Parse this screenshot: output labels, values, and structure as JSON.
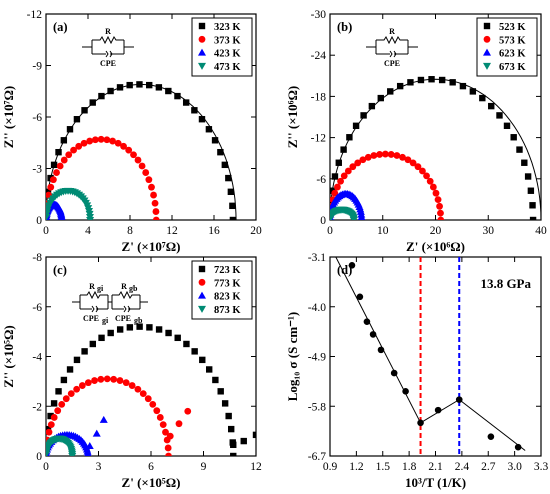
{
  "chart_data": [
    {
      "panel": "(a)",
      "type": "scatter",
      "xlabel": "Z' (×10⁷Ω)",
      "ylabel": "Z'' (×10⁷Ω)",
      "xlim": [
        0,
        20
      ],
      "ylim": [
        0,
        -12
      ],
      "xticks": [
        0,
        4,
        8,
        12,
        16,
        20
      ],
      "yticks": [
        0,
        -3,
        -6,
        -9,
        -12
      ],
      "circuit": {
        "labels": [
          "R",
          "CPE"
        ]
      },
      "legend_position": "top-right",
      "series": [
        {
          "name": "323 K",
          "color": "#000000",
          "marker": "square",
          "arc": {
            "x0": 0.0,
            "x1": 17.8,
            "peak": -7.9
          },
          "fit": {
            "x0": 0.0,
            "x1": 18.1,
            "peak": -7.9
          }
        },
        {
          "name": "373 K",
          "color": "#ff0000",
          "marker": "circle",
          "arc": {
            "x0": 0.0,
            "x1": 10.5,
            "peak": -4.7
          }
        },
        {
          "name": "423 K",
          "color": "#0000ff",
          "marker": "triangle-up",
          "arc": {
            "x0": 0.0,
            "x1": 1.5,
            "peak": -0.9
          }
        },
        {
          "name": "473 K",
          "color": "#008b74",
          "marker": "triangle-down",
          "arc": {
            "x0": 0.0,
            "x1": 4.2,
            "peak": -1.7
          }
        }
      ]
    },
    {
      "panel": "(b)",
      "type": "scatter",
      "xlabel": "Z' (×10⁶Ω)",
      "ylabel": "Z'' (×10⁶Ω)",
      "xlim": [
        0,
        40
      ],
      "ylim": [
        0,
        -30
      ],
      "xticks": [
        0,
        10,
        20,
        30,
        40
      ],
      "yticks": [
        0,
        -6,
        -12,
        -18,
        -24,
        -30
      ],
      "circuit": {
        "labels": [
          "R",
          "CPE"
        ]
      },
      "legend_position": "top-right",
      "series": [
        {
          "name": "523 K",
          "color": "#000000",
          "marker": "square",
          "arc": {
            "x0": 0.0,
            "x1": 38.5,
            "peak": -20.5
          },
          "fit": {
            "x0": 0.0,
            "x1": 40.0,
            "peak": -20.5
          }
        },
        {
          "name": "573 K",
          "color": "#ff0000",
          "marker": "circle",
          "arc": {
            "x0": 0.0,
            "x1": 21.0,
            "peak": -9.6
          }
        },
        {
          "name": "623 K",
          "color": "#0000ff",
          "marker": "triangle-up",
          "arc": {
            "x0": 0.0,
            "x1": 6.0,
            "peak": -3.8
          }
        },
        {
          "name": "673 K",
          "color": "#008b74",
          "marker": "triangle-down",
          "arc": {
            "x0": 0.0,
            "x1": 4.5,
            "peak": -1.5
          }
        }
      ]
    },
    {
      "panel": "(c)",
      "type": "scatter",
      "xlabel": "Z' (×10⁵Ω)",
      "ylabel": "Z'' (×10⁵Ω)",
      "xlim": [
        0,
        12
      ],
      "ylim": [
        0,
        -8
      ],
      "xticks": [
        0,
        3,
        6,
        9,
        12
      ],
      "yticks": [
        0,
        -2,
        -4,
        -6,
        -8
      ],
      "circuit": {
        "labels": [
          "R",
          "gi",
          "R",
          "gb",
          "CPE",
          "gi",
          "CPE",
          "gb"
        ]
      },
      "legend_position": "top-right",
      "series": [
        {
          "name": "723 K",
          "color": "#000000",
          "marker": "square",
          "arc": {
            "x0": 0.0,
            "x1": 10.7,
            "peak": -5.2
          },
          "tail": [
            [
              10.7,
              -0.45
            ],
            [
              11.3,
              -0.6
            ],
            [
              12.0,
              -0.85
            ]
          ]
        },
        {
          "name": "773 K",
          "color": "#ff0000",
          "marker": "circle",
          "arc": {
            "x0": 0.0,
            "x1": 7.0,
            "peak": -3.1
          },
          "tail": [
            [
              7.1,
              -0.8
            ],
            [
              7.6,
              -1.3
            ],
            [
              8.1,
              -1.8
            ]
          ]
        },
        {
          "name": "823 K",
          "color": "#0000ff",
          "marker": "triangle-up",
          "arc": {
            "x0": 0.0,
            "x1": 2.4,
            "peak": -0.85
          },
          "tail": [
            [
              2.5,
              -0.4
            ],
            [
              2.9,
              -0.9
            ],
            [
              3.3,
              -1.45
            ]
          ]
        },
        {
          "name": "873 K",
          "color": "#008b74",
          "marker": "triangle-down",
          "arc": {
            "x0": 0.0,
            "x1": 1.5,
            "peak": -0.7
          }
        }
      ]
    },
    {
      "panel": "(d)",
      "type": "scatter",
      "xlabel": "10³/T (1/K)",
      "ylabel": "Log₁₀ σ (S cm⁻¹)",
      "xlim": [
        0.9,
        3.3
      ],
      "ylim": [
        -6.7,
        -3.1
      ],
      "xticks": [
        0.9,
        1.2,
        1.5,
        1.8,
        2.1,
        2.4,
        2.7,
        3.0,
        3.3
      ],
      "yticks": [
        -3.1,
        -4.0,
        -4.9,
        -5.8,
        -6.7
      ],
      "annotation": "13.8 GPa",
      "points": [
        {
          "x": 1.15,
          "y": -3.25
        },
        {
          "x": 1.24,
          "y": -3.82
        },
        {
          "x": 1.32,
          "y": -4.27
        },
        {
          "x": 1.39,
          "y": -4.5
        },
        {
          "x": 1.48,
          "y": -4.78
        },
        {
          "x": 1.63,
          "y": -5.2
        },
        {
          "x": 1.76,
          "y": -5.53
        },
        {
          "x": 1.93,
          "y": -6.1
        },
        {
          "x": 2.13,
          "y": -5.87
        },
        {
          "x": 2.37,
          "y": -5.68
        },
        {
          "x": 2.73,
          "y": -6.35
        },
        {
          "x": 3.04,
          "y": -6.54
        }
      ],
      "fit_lines": [
        {
          "x": [
            0.95,
            1.93
          ],
          "y": [
            -3.05,
            -6.1
          ]
        },
        {
          "x": [
            1.93,
            2.37
          ],
          "y": [
            -6.1,
            -5.68
          ]
        },
        {
          "x": [
            2.37,
            3.12
          ],
          "y": [
            -5.68,
            -6.6
          ]
        }
      ],
      "vlines": [
        {
          "x": 1.93,
          "color": "#ff0000"
        },
        {
          "x": 2.37,
          "color": "#0000ff"
        }
      ]
    }
  ]
}
